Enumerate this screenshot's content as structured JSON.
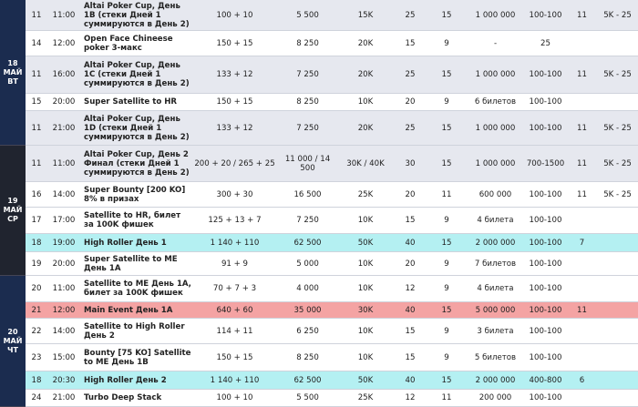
{
  "days": [
    {
      "label_lines": [
        "18",
        "МАЙ",
        "ВТ"
      ],
      "color": "#1b2c4f",
      "rows": [
        {
          "id": "11",
          "time": "11:00",
          "event": "Altai Poker Cup, День 1В (стеки Дней 1 суммируются в День 2)",
          "buy_in": "100 + 10",
          "stack": "5 500",
          "chips": "15K",
          "levels": "25",
          "minutes": "15",
          "prize": "1 000 000",
          "blinds": "100-100",
          "late": "11",
          "rebuy": "5K - 25",
          "color": "#e6e8ef"
        },
        {
          "id": "14",
          "time": "12:00",
          "event": "Open Face Chineese poker 3-макс",
          "buy_in": "150 + 15",
          "stack": "8 250",
          "chips": "20K",
          "levels": "15",
          "minutes": "9",
          "prize": "-",
          "blinds": "25",
          "color": "#ffffff"
        },
        {
          "id": "11",
          "time": "16:00",
          "event": "Altai Poker Cup, День 1С (стеки Дней 1 суммируются в День 2)",
          "buy_in": "133 + 12",
          "stack": "7 250",
          "chips": "20K",
          "levels": "25",
          "minutes": "15",
          "prize": "1 000 000",
          "blinds": "100-100",
          "late": "11",
          "rebuy": "5K - 25",
          "color": "#e6e8ef"
        },
        {
          "id": "15",
          "time": "20:00",
          "event": "Super Satellite to HR",
          "buy_in": "150 + 15",
          "stack": "8 250",
          "chips": "10K",
          "levels": "20",
          "minutes": "9",
          "prize": "6 билетов",
          "blinds": "100-100",
          "color": "#ffffff"
        },
        {
          "id": "11",
          "time": "21:00",
          "event": "Altai Poker Cup, День 1D (стеки Дней 1 суммируются в День 2)",
          "buy_in": "133 + 12",
          "stack": "7 250",
          "chips": "20K",
          "levels": "25",
          "minutes": "15",
          "prize": "1 000 000",
          "blinds": "100-100",
          "late": "11",
          "rebuy": "5K - 25",
          "color": "#e6e8ef"
        }
      ]
    },
    {
      "label_lines": [
        "19",
        "МАЙ",
        "СР"
      ],
      "color": "#20242f",
      "rows": [
        {
          "id": "11",
          "time": "11:00",
          "event": "Altai Poker Cup, День 2 Финал (стеки Дней 1 суммируются в День 2)",
          "buy_in": "200 + 20 / 265 + 25",
          "stack": "11 000 / 14 500",
          "chips": "30K / 40K",
          "levels": "30",
          "minutes": "15",
          "prize": "1 000 000",
          "blinds": "700-1500",
          "late": "11",
          "rebuy": "5K - 25",
          "color": "#e6e8ef"
        },
        {
          "id": "16",
          "time": "14:00",
          "event": "Super Bounty [200 KO] 8% в призах",
          "buy_in": "300 + 30",
          "stack": "16 500",
          "chips": "25K",
          "levels": "20",
          "minutes": "11",
          "prize": "600 000",
          "blinds": "100-100",
          "late": "11",
          "rebuy": "5K - 25",
          "color": "#ffffff"
        },
        {
          "id": "17",
          "time": "17:00",
          "event": "Satellite to HR, билет за 100K фишек",
          "buy_in": "125 + 13 + 7",
          "stack": "7 250",
          "chips": "10K",
          "levels": "15",
          "minutes": "9",
          "prize": "4 билета",
          "blinds": "100-100",
          "color": "#ffffff"
        },
        {
          "id": "18",
          "time": "19:00",
          "event": "High Roller День 1",
          "buy_in": "1 140 + 110",
          "stack": "62 500",
          "chips": "50K",
          "levels": "40",
          "minutes": "15",
          "prize": "2 000 000",
          "blinds": "100-100",
          "late": "7",
          "color": "#b4f0f2"
        },
        {
          "id": "19",
          "time": "20:00",
          "event": "Super Satellite to ME День 1А",
          "buy_in": "91 + 9",
          "stack": "5 000",
          "chips": "10K",
          "levels": "20",
          "minutes": "9",
          "prize": "7 билетов",
          "blinds": "100-100",
          "color": "#ffffff"
        }
      ]
    },
    {
      "label_lines": [
        "20",
        "МАЙ",
        "ЧТ"
      ],
      "color": "#1b2c4f",
      "rows": [
        {
          "id": "20",
          "time": "11:00",
          "event": "Satellite to ME День 1А, билет за 100K фишек",
          "buy_in": "70 + 7 + 3",
          "stack": "4 000",
          "chips": "10K",
          "levels": "12",
          "minutes": "9",
          "prize": "4 билета",
          "blinds": "100-100",
          "color": "#ffffff"
        },
        {
          "id": "21",
          "time": "12:00",
          "event": "Main Event День 1А",
          "buy_in": "640 + 60",
          "stack": "35 000",
          "chips": "30K",
          "levels": "40",
          "minutes": "15",
          "prize": "5 000 000",
          "blinds": "100-100",
          "late": "11",
          "color": "#f4a3a3"
        },
        {
          "id": "22",
          "time": "14:00",
          "event": "Satellite to High Roller День 2",
          "buy_in": "114 + 11",
          "stack": "6 250",
          "chips": "10K",
          "levels": "15",
          "minutes": "9",
          "prize": "3 билета",
          "blinds": "100-100",
          "color": "#ffffff"
        },
        {
          "id": "23",
          "time": "15:00",
          "event": "Bounty [75 KO] Satellite to ME День 1В",
          "buy_in": "150 + 15",
          "stack": "8 250",
          "chips": "10K",
          "levels": "15",
          "minutes": "9",
          "prize": "5 билетов",
          "blinds": "100-100",
          "color": "#ffffff"
        },
        {
          "id": "18",
          "time": "20:30",
          "event": "High Roller День 2",
          "buy_in": "1 140 + 110",
          "stack": "62 500",
          "chips": "50K",
          "levels": "40",
          "minutes": "15",
          "prize": "2 000 000",
          "blinds": "400-800",
          "late": "6",
          "color": "#b4f0f2"
        },
        {
          "id": "24",
          "time": "21:00",
          "event": "Turbo Deep Stack",
          "buy_in": "100 + 10",
          "stack": "5 500",
          "chips": "25K",
          "levels": "12",
          "minutes": "11",
          "prize": "200 000",
          "blinds": "100-100",
          "color": "#ffffff"
        }
      ]
    }
  ]
}
